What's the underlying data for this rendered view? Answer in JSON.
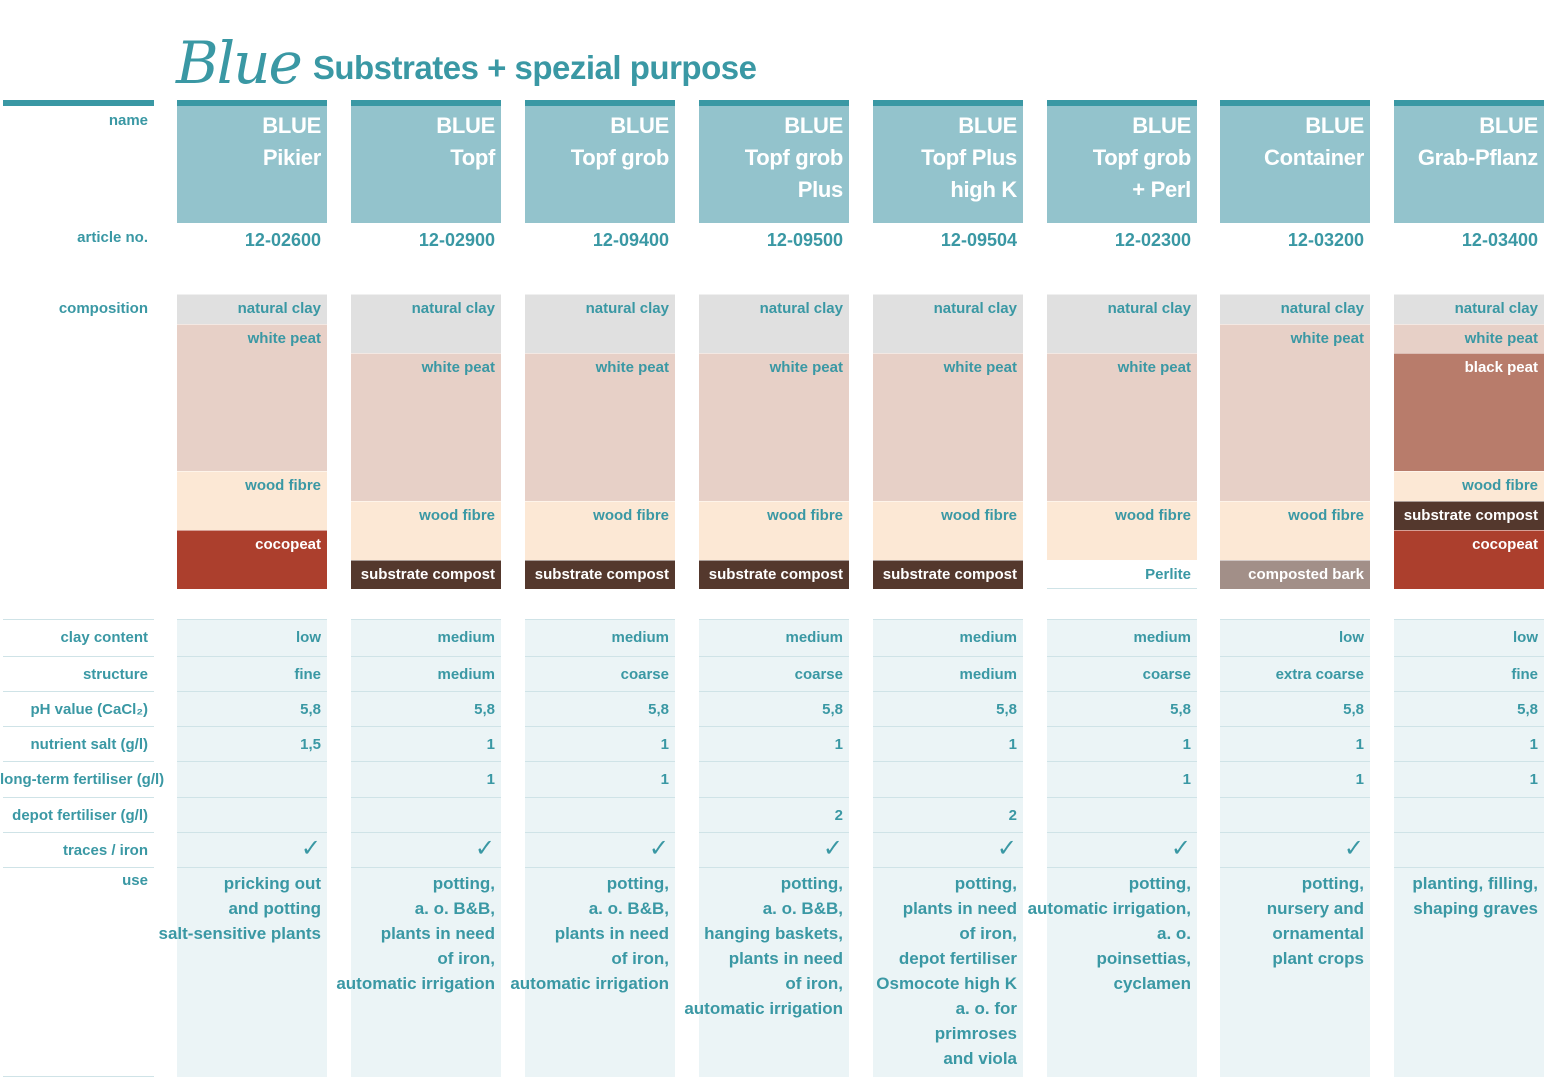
{
  "header": {
    "logo_text": "Blue",
    "title": "Substrates + spezial purpose"
  },
  "row_labels": {
    "name": "name",
    "article": "article no.",
    "composition": "composition",
    "clay_content": "clay content",
    "structure": "structure",
    "ph": "pH value  (CaCl₂)",
    "nutrient_salt": "nutrient salt (g/l)",
    "long_term": "long-term fertiliser (g/l)",
    "depot": "depot fertiliser (g/l)",
    "traces": "traces / iron",
    "use": "use"
  },
  "colors": {
    "accent": "#3a98a4",
    "header_fill": "#93c3cc",
    "data_fill": "#ebf4f6",
    "natural_clay": "#e0e0e0",
    "white_peat": "#e7d0c7",
    "wood_fibre": "#fce8d5",
    "cocopeat": "#ac3f2d",
    "substrate_compost": "#54382d",
    "black_peat": "#b87c6b",
    "perlite": "#ffffff",
    "composted_bark": "#a28f88"
  },
  "products": [
    {
      "name": [
        "BLUE",
        "Pikier"
      ],
      "article": "12-02600",
      "composition": [
        {
          "label": "natural clay",
          "kind": "natural_clay",
          "share": 1
        },
        {
          "label": "white peat",
          "kind": "white_peat",
          "share": 5
        },
        {
          "label": "wood fibre",
          "kind": "wood_fibre",
          "share": 2
        },
        {
          "label": "cocopeat",
          "kind": "cocopeat",
          "share": 2
        }
      ],
      "clay_content": "low",
      "structure": "fine",
      "ph": "5,8",
      "nutrient_salt": "1,5",
      "long_term": "",
      "depot": "",
      "traces": true,
      "use": [
        "pricking out",
        "and potting",
        "salt-sensitive plants"
      ]
    },
    {
      "name": [
        "BLUE",
        "Topf"
      ],
      "article": "12-02900",
      "composition": [
        {
          "label": "natural clay",
          "kind": "natural_clay",
          "share": 2
        },
        {
          "label": "white peat",
          "kind": "white_peat",
          "share": 5
        },
        {
          "label": "wood fibre",
          "kind": "wood_fibre",
          "share": 2
        },
        {
          "label": "substrate compost",
          "kind": "substrate_compost",
          "share": 1
        }
      ],
      "clay_content": "medium",
      "structure": "medium",
      "ph": "5,8",
      "nutrient_salt": "1",
      "long_term": "1",
      "depot": "",
      "traces": true,
      "use": [
        "potting,",
        "a. o. B&B,",
        "plants in need",
        "of iron,",
        "automatic irrigation"
      ]
    },
    {
      "name": [
        "BLUE",
        "Topf grob"
      ],
      "article": "12-09400",
      "composition": [
        {
          "label": "natural clay",
          "kind": "natural_clay",
          "share": 2
        },
        {
          "label": "white peat",
          "kind": "white_peat",
          "share": 5
        },
        {
          "label": "wood fibre",
          "kind": "wood_fibre",
          "share": 2
        },
        {
          "label": "substrate compost",
          "kind": "substrate_compost",
          "share": 1
        }
      ],
      "clay_content": "medium",
      "structure": "coarse",
      "ph": "5,8",
      "nutrient_salt": "1",
      "long_term": "1",
      "depot": "",
      "traces": true,
      "use": [
        "potting,",
        "a. o. B&B,",
        "plants in need",
        "of iron,",
        "automatic irrigation"
      ]
    },
    {
      "name": [
        "BLUE",
        "Topf grob",
        "Plus"
      ],
      "article": "12-09500",
      "composition": [
        {
          "label": "natural clay",
          "kind": "natural_clay",
          "share": 2
        },
        {
          "label": "white peat",
          "kind": "white_peat",
          "share": 5
        },
        {
          "label": "wood fibre",
          "kind": "wood_fibre",
          "share": 2
        },
        {
          "label": "substrate compost",
          "kind": "substrate_compost",
          "share": 1
        }
      ],
      "clay_content": "medium",
      "structure": "coarse",
      "ph": "5,8",
      "nutrient_salt": "1",
      "long_term": "",
      "depot": "2",
      "traces": true,
      "use": [
        "potting,",
        "a. o. B&B,",
        "hanging baskets,",
        "plants in need",
        "of iron,",
        "automatic irrigation"
      ]
    },
    {
      "name": [
        "BLUE",
        "Topf Plus",
        "high K"
      ],
      "article": "12-09504",
      "composition": [
        {
          "label": "natural clay",
          "kind": "natural_clay",
          "share": 2
        },
        {
          "label": "white peat",
          "kind": "white_peat",
          "share": 5
        },
        {
          "label": "wood fibre",
          "kind": "wood_fibre",
          "share": 2
        },
        {
          "label": "substrate compost",
          "kind": "substrate_compost",
          "share": 1
        }
      ],
      "clay_content": "medium",
      "structure": "medium",
      "ph": "5,8",
      "nutrient_salt": "1",
      "long_term": "",
      "depot": "2",
      "traces": true,
      "use": [
        "potting,",
        "plants in need",
        "of iron,",
        "depot fertiliser",
        "Osmocote high K",
        "a. o. for",
        "primroses",
        "and viola"
      ]
    },
    {
      "name": [
        "BLUE",
        "Topf grob",
        "+ Perl"
      ],
      "article": "12-02300",
      "composition": [
        {
          "label": "natural clay",
          "kind": "natural_clay",
          "share": 2
        },
        {
          "label": "white peat",
          "kind": "white_peat",
          "share": 5
        },
        {
          "label": "wood fibre",
          "kind": "wood_fibre",
          "share": 2
        },
        {
          "label": "Perlite",
          "kind": "perlite",
          "share": 1
        }
      ],
      "clay_content": "medium",
      "structure": "coarse",
      "ph": "5,8",
      "nutrient_salt": "1",
      "long_term": "1",
      "depot": "",
      "traces": true,
      "use": [
        "potting,",
        "automatic irrigation,",
        "a. o.",
        "poinsettias,",
        "cyclamen"
      ]
    },
    {
      "name": [
        "BLUE",
        "Container"
      ],
      "article": "12-03200",
      "composition": [
        {
          "label": "natural clay",
          "kind": "natural_clay",
          "share": 1
        },
        {
          "label": "white peat",
          "kind": "white_peat",
          "share": 6
        },
        {
          "label": "wood fibre",
          "kind": "wood_fibre",
          "share": 2
        },
        {
          "label": "composted bark",
          "kind": "composted_bark",
          "share": 1
        }
      ],
      "clay_content": "low",
      "structure": "extra coarse",
      "ph": "5,8",
      "nutrient_salt": "1",
      "long_term": "1",
      "depot": "",
      "traces": true,
      "use": [
        "potting,",
        "nursery and",
        "ornamental",
        "plant crops"
      ]
    },
    {
      "name": [
        "BLUE",
        "Grab-Pflanz"
      ],
      "article": "12-03400",
      "composition": [
        {
          "label": "natural clay",
          "kind": "natural_clay",
          "share": 1
        },
        {
          "label": "white peat",
          "kind": "white_peat",
          "share": 1
        },
        {
          "label": "black peat",
          "kind": "black_peat",
          "share": 4
        },
        {
          "label": "wood fibre",
          "kind": "wood_fibre",
          "share": 1
        },
        {
          "label": "substrate compost",
          "kind": "substrate_compost",
          "share": 1
        },
        {
          "label": "cocopeat",
          "kind": "cocopeat",
          "share": 2
        }
      ],
      "clay_content": "low",
      "structure": "fine",
      "ph": "5,8",
      "nutrient_salt": "1",
      "long_term": "1",
      "depot": "",
      "traces": false,
      "use": [
        "planting, filling,",
        "shaping graves"
      ]
    }
  ]
}
